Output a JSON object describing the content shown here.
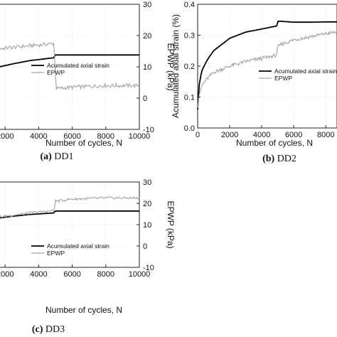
{
  "panels": [
    {
      "caption_id": "(a)",
      "caption_name": " DD1"
    },
    {
      "caption_id": "(b)",
      "caption_name": " DD2"
    },
    {
      "caption_id": "(c)",
      "caption_name": " DD3"
    }
  ],
  "colors": {
    "strain": "#000000",
    "epwp": "#a8a8a8",
    "axis": "#222222",
    "grid": "#dddddd"
  },
  "chart_data": [
    {
      "type": "line",
      "panel": "(a) DD1",
      "xlabel": "Number of cycles, N",
      "ylabel": "",
      "y2label": "EPWP (kPa)",
      "xlim": [
        0,
        10000
      ],
      "ylim": [
        0,
        0.4
      ],
      "y2lim": [
        -10,
        30
      ],
      "xticks": [
        "2000",
        "4000",
        "6000",
        "8000",
        "10000"
      ],
      "yticks": [],
      "y2ticks": [
        "-10",
        "0",
        "10",
        "20",
        "30"
      ],
      "legend": [
        "Acumulated axial strain",
        "EPWP"
      ],
      "legend_position": "middle-right",
      "grid": true,
      "series": [
        {
          "name": "Acumulated axial strain",
          "axis": "left",
          "x": [
            0,
            600,
            1500,
            2500,
            3500,
            4900,
            5000,
            6000,
            8000,
            10000
          ],
          "values": [
            0.175,
            0.183,
            0.198,
            0.21,
            0.22,
            0.229,
            0.238,
            0.238,
            0.238,
            0.238
          ]
        },
        {
          "name": "EPWP",
          "axis": "right",
          "x": [
            0,
            1000,
            2000,
            3000,
            4000,
            4900,
            4950,
            5050,
            6000,
            8000,
            10000
          ],
          "values": [
            14,
            15,
            16,
            16.5,
            17,
            17.5,
            13,
            3,
            3.5,
            4,
            4
          ]
        }
      ]
    },
    {
      "type": "line",
      "panel": "(b) DD2",
      "xlabel": "Number of cycles, N",
      "ylabel": "Acumulated axial strain (%)",
      "y2label": "",
      "xlim": [
        0,
        8700
      ],
      "ylim": [
        0,
        0.4
      ],
      "y2lim": [
        -10,
        30
      ],
      "xticks": [
        "0",
        "2000",
        "4000",
        "6000",
        "8000"
      ],
      "yticks": [
        "0.0",
        "0.1",
        "0.2",
        "0.3",
        "0.4"
      ],
      "y2ticks": [],
      "legend": [
        "Acumulated axial strain",
        "EPWP"
      ],
      "legend_position": "middle-right",
      "grid": true,
      "series": [
        {
          "name": "Acumulated axial strain",
          "axis": "left",
          "x": [
            0,
            50,
            150,
            300,
            600,
            1000,
            2000,
            3000,
            4000,
            4950,
            5000,
            5200,
            6000,
            7000,
            8000,
            8700
          ],
          "values": [
            0.06,
            0.12,
            0.16,
            0.19,
            0.22,
            0.25,
            0.29,
            0.31,
            0.32,
            0.33,
            0.345,
            0.345,
            0.342,
            0.342,
            0.343,
            0.343
          ]
        },
        {
          "name": "EPWP",
          "axis": "right",
          "x": [
            0,
            100,
            300,
            600,
            1000,
            2000,
            3000,
            4000,
            4900,
            5000,
            5200,
            6000,
            7000,
            8000,
            8700
          ],
          "values": [
            -3,
            1,
            4,
            6,
            8,
            10,
            11.5,
            12.5,
            13.5,
            16,
            17,
            18.5,
            19.5,
            20.5,
            21
          ]
        }
      ]
    },
    {
      "type": "line",
      "panel": "(c) DD3",
      "xlabel": "Number of cycles, N",
      "ylabel": "",
      "y2label": "EPWP (kPa)",
      "xlim": [
        0,
        10000
      ],
      "ylim": [
        0,
        0.4
      ],
      "y2lim": [
        -10,
        30
      ],
      "xticks": [
        "2000",
        "4000",
        "6000",
        "8000",
        "10000"
      ],
      "yticks": [],
      "y2ticks": [
        "-10",
        "0",
        "10",
        "20",
        "30"
      ],
      "legend": [
        "Acumulated axial strain",
        "EPWP"
      ],
      "legend_position": "middle-right",
      "grid": true,
      "series": [
        {
          "name": "Acumulated axial strain",
          "axis": "left",
          "x": [
            0,
            700,
            1500,
            2500,
            3500,
            4900,
            5000,
            6000,
            8000,
            10000
          ],
          "values": [
            0.21,
            0.22,
            0.23,
            0.24,
            0.248,
            0.255,
            0.264,
            0.264,
            0.264,
            0.264
          ]
        },
        {
          "name": "EPWP",
          "axis": "right",
          "x": [
            0,
            1000,
            2000,
            3000,
            4000,
            4900,
            5000,
            6000,
            8000,
            10000
          ],
          "values": [
            12.5,
            13,
            14,
            15,
            16,
            16.5,
            21,
            22,
            22.5,
            22.5
          ]
        }
      ]
    }
  ]
}
